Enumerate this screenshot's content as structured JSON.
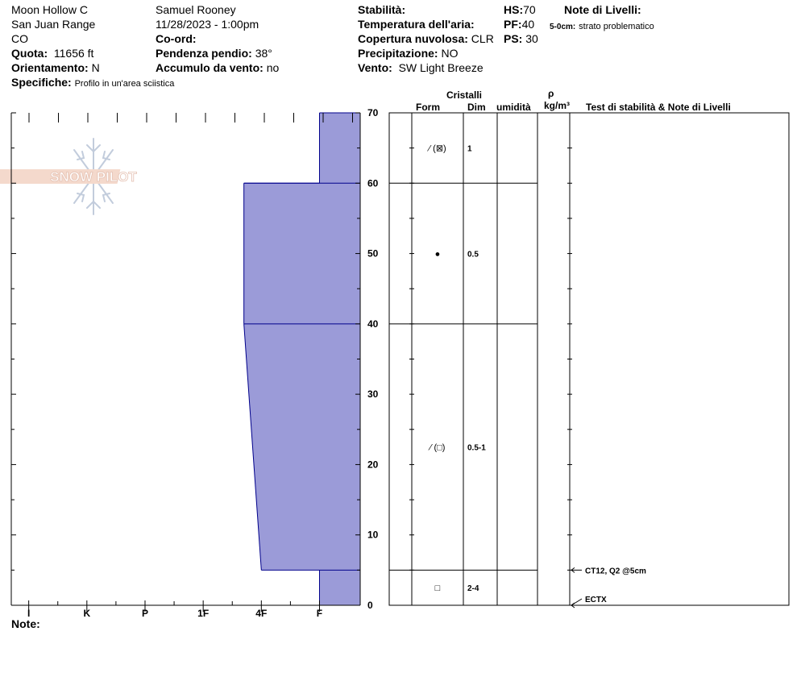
{
  "header": {
    "location": "Moon Hollow C",
    "range": "San Juan Range",
    "state": "CO",
    "observer": "Samuel  Rooney",
    "datetime": "11/28/2023 - 1:00pm",
    "labels": {
      "quota": "Quota:",
      "orientamento": "Orientamento:",
      "specifiche": "Specifiche:",
      "coord": "Co-ord:",
      "pendenza": "Pendenza pendio:",
      "accumulo": "Accumulo da vento:",
      "stabilita": "Stabilità:",
      "temperatura": "Temperatura dell'aria:",
      "copertura": "Copertura nuvolosa:",
      "precipitazione": "Precipitazione:",
      "vento": "Vento:",
      "hs": "HS:",
      "pf": "PF:",
      "ps": "PS:",
      "note_livelli": "Note di Livelli:"
    },
    "values": {
      "quota": "11656 ft",
      "orientamento": "N",
      "specifiche": "Profilo in un'area sciistica",
      "pendenza": "38°",
      "accumulo": "no",
      "copertura": "CLR",
      "precipitazione": "NO",
      "vento": "SW Light Breeze",
      "hs": "70",
      "pf": "40",
      "ps": "30"
    },
    "layer_note_depth": "5-0cm:",
    "layer_note_text": "strato problematico"
  },
  "logo": {
    "text": "SNOW PILOT"
  },
  "note_label": "Note:",
  "table_headers": {
    "cristalli": "Cristalli",
    "form": "Form",
    "dim": "Dim",
    "umidita": "umidità",
    "rho": "ρ",
    "density_unit": "kg/m³",
    "tests": "Test di stabilità & Note di Livelli"
  },
  "chart_data": {
    "type": "area",
    "title": "",
    "x_axis": {
      "labels": [
        "I",
        "K",
        "P",
        "1F",
        "4F",
        "F"
      ],
      "positions": [
        1,
        2,
        3,
        4,
        5,
        6
      ],
      "range": [
        0.7,
        6.7
      ],
      "direction": "hand hardness, decreasing to the right"
    },
    "y_axis": {
      "range": [
        0,
        70
      ],
      "ticks": [
        0,
        10,
        20,
        30,
        40,
        50,
        60,
        70
      ],
      "unit": "cm"
    },
    "layers": [
      {
        "top": 70,
        "bottom": 60,
        "hardness_top": 6,
        "hardness_bottom": 6,
        "grain_form": "⁄ (⊠)",
        "grain_size": "1"
      },
      {
        "top": 60,
        "bottom": 40,
        "hardness_top": 4.7,
        "hardness_bottom": 4.7,
        "grain_form": "●",
        "grain_size": "0.5"
      },
      {
        "top": 40,
        "bottom": 5,
        "hardness_top": 4.7,
        "hardness_bottom": 5,
        "grain_form": "⁄ (□)",
        "grain_size": "0.5-1"
      },
      {
        "top": 5,
        "bottom": 0,
        "hardness_top": 6,
        "hardness_bottom": 6,
        "grain_form": "□",
        "grain_size": "2-4"
      }
    ],
    "stability_tests": [
      {
        "depth": 5,
        "text": "CT12, Q2 @5cm"
      },
      {
        "depth": 0,
        "text": "ECTX"
      }
    ],
    "fill_color": "#9b9bd8",
    "edge_color": "#00008b"
  }
}
